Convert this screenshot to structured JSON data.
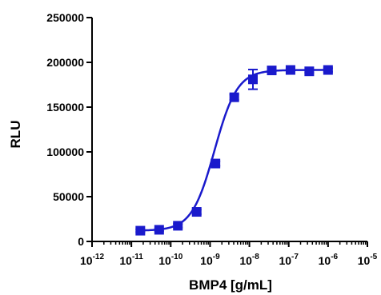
{
  "chart_data": {
    "type": "scatter",
    "title": "",
    "xlabel": "BMP4 [g/mL]",
    "ylabel": "RLU",
    "x_scale": "log",
    "xlim": [
      1e-12,
      1e-05
    ],
    "ylim": [
      0,
      250000
    ],
    "x_tick_labels": [
      {
        "base": "10",
        "exp": "-12"
      },
      {
        "base": "10",
        "exp": "-11"
      },
      {
        "base": "10",
        "exp": "-10"
      },
      {
        "base": "10",
        "exp": "-9"
      },
      {
        "base": "10",
        "exp": "-8"
      },
      {
        "base": "10",
        "exp": "-7"
      },
      {
        "base": "10",
        "exp": "-6"
      },
      {
        "base": "10",
        "exp": "-5"
      }
    ],
    "y_tick_labels": [
      "0",
      "50000",
      "100000",
      "150000",
      "200000",
      "250000"
    ],
    "y_ticks": [
      0,
      50000,
      100000,
      150000,
      200000,
      250000
    ],
    "grid": false,
    "legend": "none",
    "series": [
      {
        "marker": "square",
        "color": "#1a1acc",
        "x": [
          1.69e-11,
          5.08e-11,
          1.52e-10,
          4.57e-10,
          1.37e-09,
          4.12e-09,
          1.23e-08,
          3.7e-08,
          1.11e-07,
          3.33e-07,
          1e-06
        ],
        "y": [
          12000,
          13000,
          17500,
          33000,
          87000,
          161000,
          181000,
          191000,
          191500,
          190000,
          191500
        ],
        "error": [
          1500,
          1500,
          2000,
          2500,
          2500,
          3000,
          11000,
          2000,
          1500,
          1500,
          2000
        ]
      }
    ],
    "fit_curve": {
      "model": "four-parameter logistic",
      "color": "#1a1acc",
      "bottom": 12000,
      "top": 191500,
      "ec50": 1.3e-09,
      "hill": 1.5
    }
  }
}
